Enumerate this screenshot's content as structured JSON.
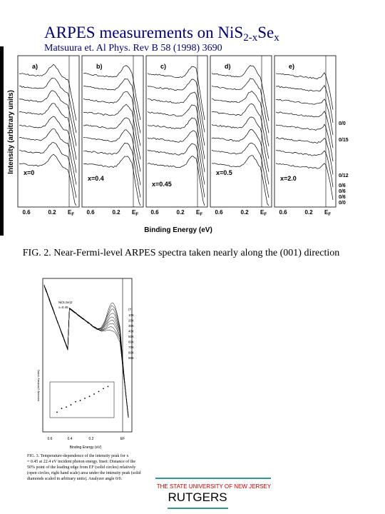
{
  "header": {
    "title": "ARPES measurements on NiS",
    "title_sub_1": "2-x",
    "title_mid": "Se",
    "title_sub_2": "x",
    "citation": "Matsuura et. Al Phys. Rev B 58 (1998) 3690"
  },
  "figure_1": {
    "y_label": "Intensity (arbitrary units)",
    "x_label": "Binding Energy (eV)",
    "tick_labels": [
      "0.6",
      "0.2"
    ],
    "fermi_symbol": "E",
    "fermi_subscript": "F",
    "panels": [
      {
        "letter": "a)",
        "composition": "x=0"
      },
      {
        "letter": "b)",
        "composition": "x=0.4"
      },
      {
        "letter": "c)",
        "composition": "x=0.45"
      },
      {
        "letter": "d)",
        "composition": "x=0.5"
      },
      {
        "letter": "e)",
        "composition": "x=2.0"
      }
    ],
    "angle_labels": [
      "0/0",
      "0/15",
      "0/12",
      "0/6",
      "0/6",
      "0/6",
      "0/0"
    ],
    "caption": "FIG. 2. Near-Fermi-level ARPES spectra taken nearly along the (001) direction"
  },
  "figure_2": {
    "sample": "Ni(S,Se)2",
    "composition": "x=0.45",
    "legend_title": "(T)",
    "temperatures": [
      "10K",
      "20K",
      "30K",
      "40K",
      "50K",
      "60K",
      "70K",
      "80K",
      "90K"
    ],
    "tick_labels": [
      "0.6",
      "0.4",
      "0.2",
      "EF"
    ],
    "x_label": "Binding Energy (eV)",
    "y_label": "Intensity (Arbitrary Units)",
    "caption_lines": [
      "FIG. 3. Temperature-dependence of the intensity peak for x",
      "= 0.45 at 22.4 eV incident photon energy. Inset: Distance of the",
      "50% point of the leading edge from EF (solid circles) relatively",
      "(open circles, right hand scale) area under the intensity peak (solid",
      "diamonds scaled in arbitrary units). Analyzer angle 0/0."
    ]
  },
  "footer": {
    "university": "THE STATE UNIVERSITY OF NEW JERSEY",
    "name": "RUTGERS"
  }
}
